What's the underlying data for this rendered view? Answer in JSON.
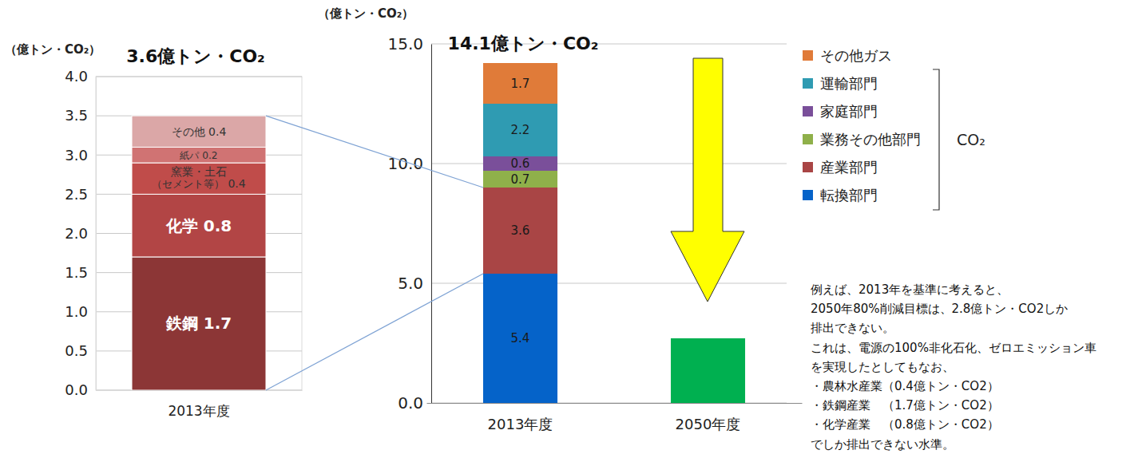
{
  "chart_data": [
    {
      "type": "bar",
      "stacked": true,
      "data_labels": true,
      "grid": true,
      "title": "3.6億トン・CO₂",
      "y_label": "（億トン・CO₂）",
      "categories": [
        "2013年度"
      ],
      "ylim": [
        0,
        4
      ],
      "yticks": [
        {
          "value": 0,
          "label": "0.0"
        },
        0.5,
        {
          "value": 1,
          "label": "1.0"
        },
        1.5,
        {
          "value": 2,
          "label": "2.0"
        },
        2.5,
        {
          "value": 3,
          "label": "3.0"
        },
        3.5,
        {
          "value": 4,
          "label": "4.0"
        }
      ],
      "series": [
        {
          "name": "鉄鋼",
          "color": "#8c3636",
          "values": [
            1.7
          ]
        },
        {
          "name": "化学",
          "color": "#b24545",
          "values": [
            0.8
          ]
        },
        {
          "name": "窯業・土石（セメント等）",
          "color": "#c04c4a",
          "values": [
            0.4
          ]
        },
        {
          "name": "紙パ",
          "color": "#d07373",
          "values": [
            0.2
          ]
        },
        {
          "name": "その他",
          "color": "#dba7a7",
          "values": [
            0.4
          ]
        }
      ]
    },
    {
      "type": "bar",
      "stacked": true,
      "data_labels": true,
      "grid": true,
      "legend": "right",
      "title": "14.1億トン・CO₂",
      "y_label": "（億トン・CO₂）",
      "legend_group_label": "CO₂",
      "categories": [
        "2013年度",
        "2050年度"
      ],
      "ylim": [
        0,
        15
      ],
      "yticks": [
        {
          "value": 0,
          "label": "0.0"
        },
        {
          "value": 5,
          "label": "5.0"
        },
        {
          "value": 10,
          "label": "10.0"
        },
        {
          "value": 15,
          "label": "15.0"
        }
      ],
      "series": [
        {
          "name": "転換部門",
          "color": "#0563c9",
          "values": [
            5.4,
            null
          ]
        },
        {
          "name": "産業部門",
          "color": "#a94545",
          "values": [
            3.6,
            null
          ]
        },
        {
          "name": "業務その他部門",
          "color": "#8fb04a",
          "values": [
            0.7,
            null
          ]
        },
        {
          "name": "家庭部門",
          "color": "#7a4f9a",
          "values": [
            0.6,
            null
          ]
        },
        {
          "name": "運輸部門",
          "color": "#2f9bb2",
          "values": [
            2.2,
            null
          ]
        },
        {
          "name": "その他ガス",
          "color": "#e07b39",
          "values": [
            1.7,
            null
          ]
        },
        {
          "color": "#00b050",
          "values": [
            null,
            2.7
          ],
          "data_labels": false
        }
      ]
    }
  ],
  "annotation": {
    "lines": [
      "例えば、2013年を基準に考えると、",
      "2050年80%削減目標は、2.8億トン・CO2しか",
      "排出できない。",
      "これは、電源の100%非化石化、ゼロエミッション車",
      "を実現したとしてもなお、",
      "・農林水産業（0.4億トン・CO2）",
      "・鉄鋼産業　（1.7億トン・CO2）",
      "・化学産業　（0.8億トン・CO2）",
      "でしか排出できない水準。"
    ]
  }
}
